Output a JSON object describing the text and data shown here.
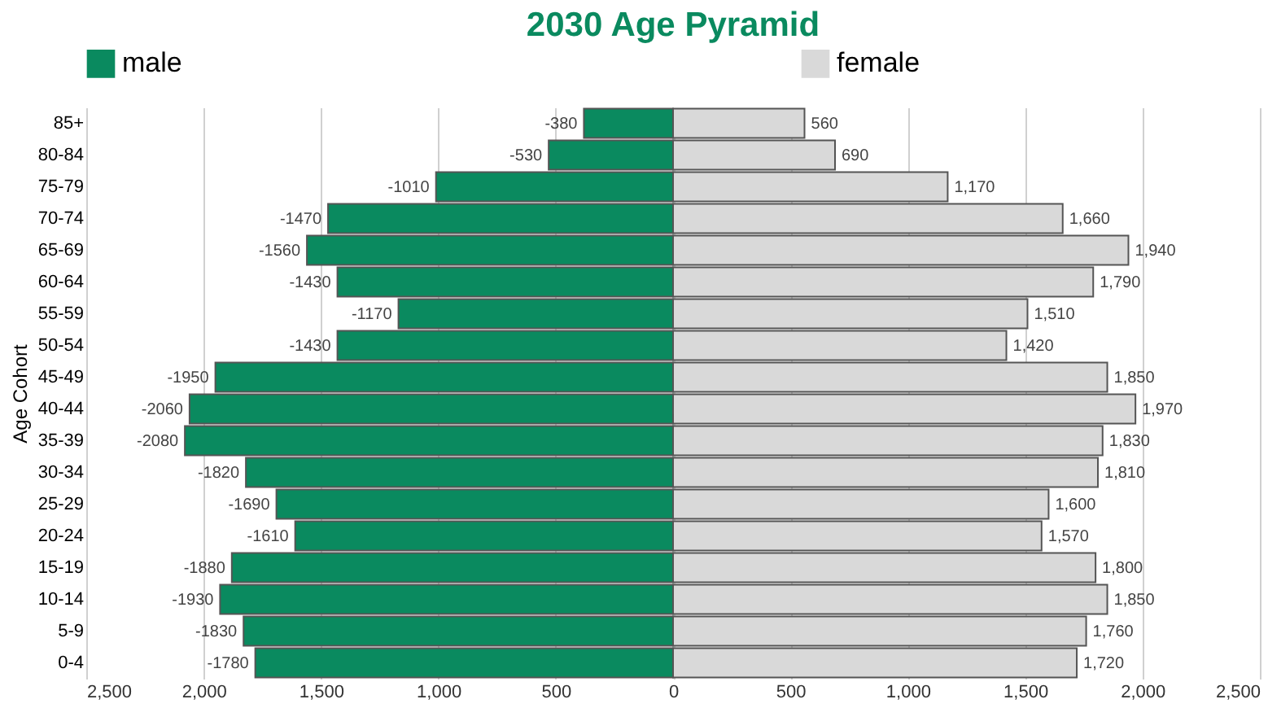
{
  "chart_data": {
    "type": "bar",
    "orientation": "horizontal",
    "stacked": true,
    "title": "2030 Age Pyramid",
    "ylabel": "Age Cohort",
    "categories": [
      "85+",
      "80-84",
      "75-79",
      "70-74",
      "65-69",
      "60-64",
      "55-59",
      "50-54",
      "45-49",
      "40-44",
      "35-39",
      "30-34",
      "25-29",
      "20-24",
      "15-19",
      "10-14",
      "5-9",
      "0-4"
    ],
    "series": [
      {
        "name": "male",
        "color": "#0a8a5f",
        "values": [
          -380,
          -530,
          -1010,
          -1470,
          -1560,
          -1430,
          -1170,
          -1430,
          -1950,
          -2060,
          -2080,
          -1820,
          -1690,
          -1610,
          -1880,
          -1930,
          -1830,
          -1780
        ],
        "value_labels": [
          "-380",
          "-530",
          "-1010",
          "-1470",
          "-1560",
          "-1430",
          "-1170",
          "-1430",
          "-1950",
          "-2060",
          "-2080",
          "-1820",
          "-1690",
          "-1610",
          "-1880",
          "-1930",
          "-1830",
          "-1780"
        ]
      },
      {
        "name": "female",
        "color": "#d9d9d9",
        "values": [
          560,
          690,
          1170,
          1660,
          1940,
          1790,
          1510,
          1420,
          1850,
          1970,
          1830,
          1810,
          1600,
          1570,
          1800,
          1850,
          1760,
          1720
        ],
        "value_labels": [
          "560",
          "690",
          "1,170",
          "1,660",
          "1,940",
          "1,790",
          "1,510",
          "1,420",
          "1,850",
          "1,970",
          "1,830",
          "1,810",
          "1,600",
          "1,570",
          "1,800",
          "1,850",
          "1,760",
          "1,720"
        ]
      }
    ],
    "xlim": [
      -2500,
      2500
    ],
    "xticks": [
      {
        "value": -2500,
        "label": "2,500"
      },
      {
        "value": -2000,
        "label": "2,000"
      },
      {
        "value": -1500,
        "label": "1,500"
      },
      {
        "value": -1000,
        "label": "1,000"
      },
      {
        "value": -500,
        "label": "500"
      },
      0,
      500,
      {
        "value": 1000,
        "label": "1,000"
      },
      {
        "value": 1500,
        "label": "1,500"
      },
      {
        "value": 2000,
        "label": "2,000"
      },
      {
        "value": 2500,
        "label": "2,500"
      }
    ],
    "grid": "x",
    "legend": "top"
  }
}
